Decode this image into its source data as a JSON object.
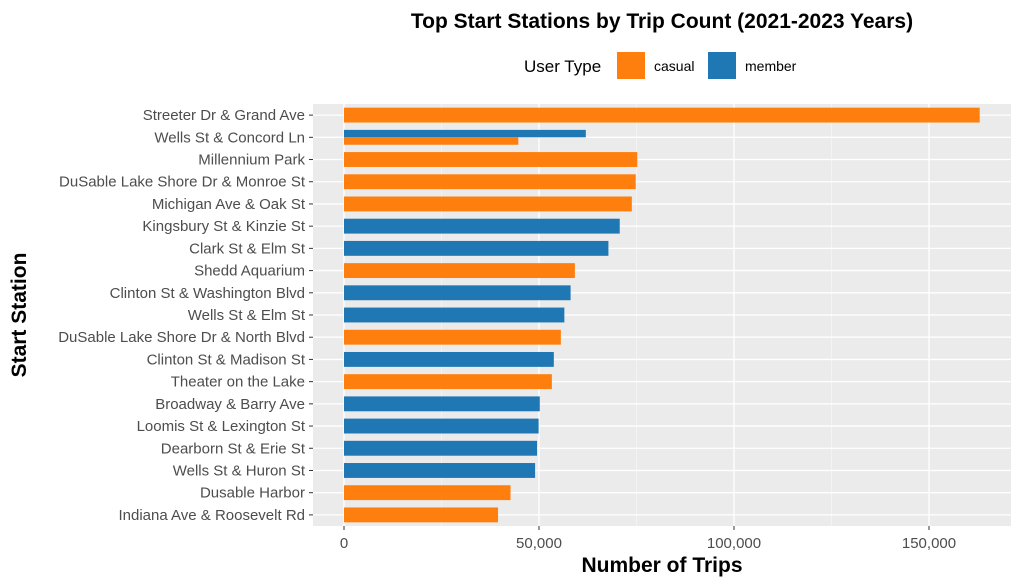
{
  "chart_data": {
    "type": "bar",
    "orientation": "horizontal",
    "title": "Top Start Stations by Trip Count (2021-2023 Years)",
    "xlabel": "Number of Trips",
    "ylabel": "Start Station",
    "xlim": [
      0,
      170000
    ],
    "x_ticks": [
      0,
      50000,
      100000,
      150000
    ],
    "x_tick_labels": [
      "0",
      "50,000",
      "100,000",
      "150,000"
    ],
    "grid": true,
    "legend": {
      "title": "User Type",
      "placement": "top",
      "entries": [
        {
          "name": "casual",
          "color": "#ff7f0e"
        },
        {
          "name": "member",
          "color": "#1f77b4"
        }
      ]
    },
    "categories": [
      "Streeter Dr & Grand Ave",
      "Wells St & Concord Ln",
      "Millennium Park",
      "DuSable Lake Shore Dr & Monroe St",
      "Michigan Ave & Oak St",
      "Kingsbury St & Kinzie St",
      "Clark St & Elm St",
      "Shedd Aquarium",
      "Clinton St & Washington Blvd",
      "Wells St & Elm St",
      "DuSable Lake Shore Dr & North Blvd",
      "Clinton St & Madison St",
      "Theater on the Lake",
      "Broadway & Barry Ave",
      "Loomis St & Lexington St",
      "Dearborn St & Erie St",
      "Wells St & Huron St",
      "Dusable Harbor",
      "Indiana Ave & Roosevelt Rd"
    ],
    "bars": [
      {
        "category": "Streeter Dr & Grand Ave",
        "series": "casual",
        "value": 163000
      },
      {
        "category": "Wells St & Concord Ln",
        "series": "member",
        "value": 62000
      },
      {
        "category": "Wells St & Concord Ln",
        "series": "casual",
        "value": 44700
      },
      {
        "category": "Millennium Park",
        "series": "casual",
        "value": 75200
      },
      {
        "category": "DuSable Lake Shore Dr & Monroe St",
        "series": "casual",
        "value": 74800
      },
      {
        "category": "Michigan Ave & Oak St",
        "series": "casual",
        "value": 73800
      },
      {
        "category": "Kingsbury St & Kinzie St",
        "series": "member",
        "value": 70700
      },
      {
        "category": "Clark St & Elm St",
        "series": "member",
        "value": 67800
      },
      {
        "category": "Shedd Aquarium",
        "series": "casual",
        "value": 59200
      },
      {
        "category": "Clinton St & Washington Blvd",
        "series": "member",
        "value": 58100
      },
      {
        "category": "Wells St & Elm St",
        "series": "member",
        "value": 56500
      },
      {
        "category": "DuSable Lake Shore Dr & North Blvd",
        "series": "casual",
        "value": 55600
      },
      {
        "category": "Clinton St & Madison St",
        "series": "member",
        "value": 53800
      },
      {
        "category": "Theater on the Lake",
        "series": "casual",
        "value": 53300
      },
      {
        "category": "Broadway & Barry Ave",
        "series": "member",
        "value": 50200
      },
      {
        "category": "Loomis St & Lexington St",
        "series": "member",
        "value": 49900
      },
      {
        "category": "Dearborn St & Erie St",
        "series": "member",
        "value": 49500
      },
      {
        "category": "Wells St & Huron St",
        "series": "member",
        "value": 49000
      },
      {
        "category": "Dusable Harbor",
        "series": "casual",
        "value": 42700
      },
      {
        "category": "Indiana Ave & Roosevelt Rd",
        "series": "casual",
        "value": 39500
      }
    ]
  }
}
